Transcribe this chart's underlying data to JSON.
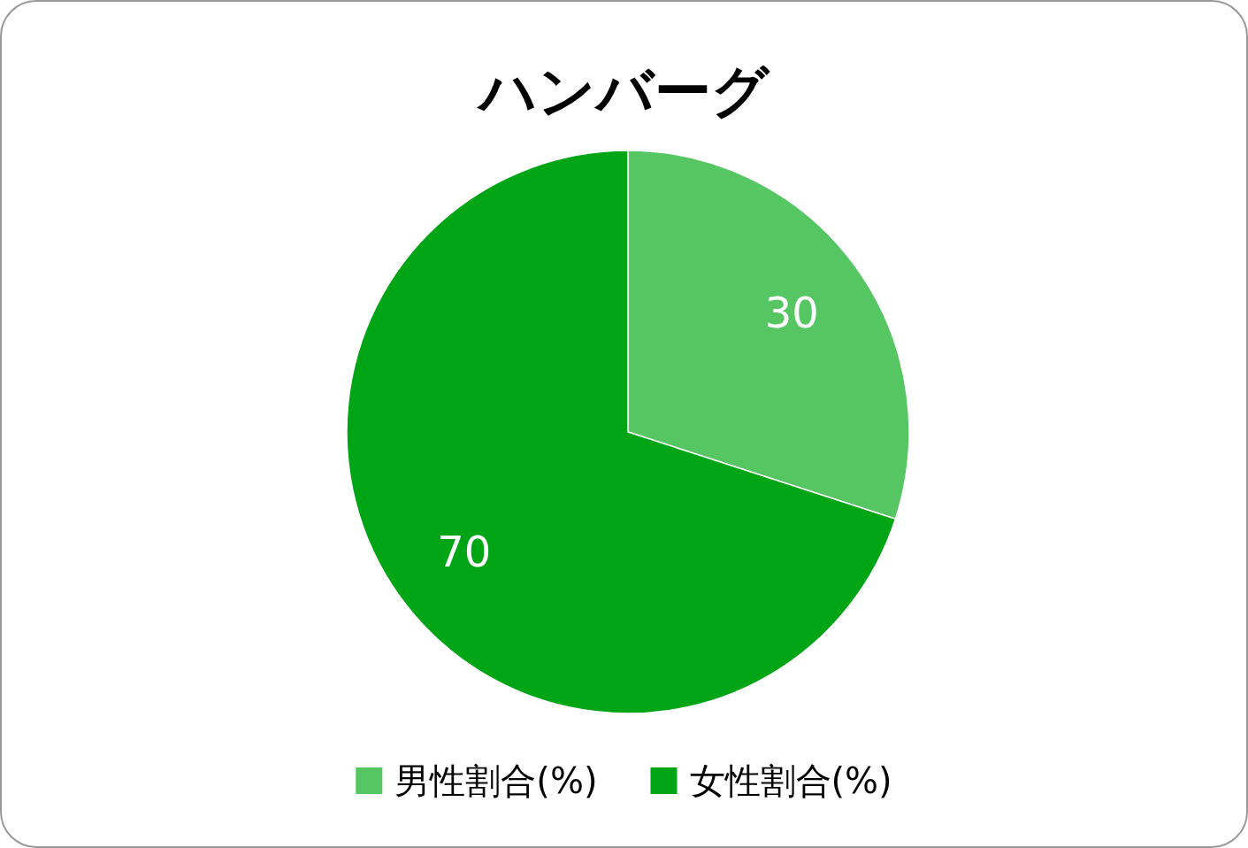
{
  "chart_data": {
    "type": "pie",
    "title": "ハンバーグ",
    "categories": [
      "男性割合(%)",
      "女性割合(%)"
    ],
    "values": [
      30,
      70
    ],
    "colors": [
      "#55c662",
      "#00a516"
    ],
    "data_labels": true,
    "legend": "bottom"
  }
}
